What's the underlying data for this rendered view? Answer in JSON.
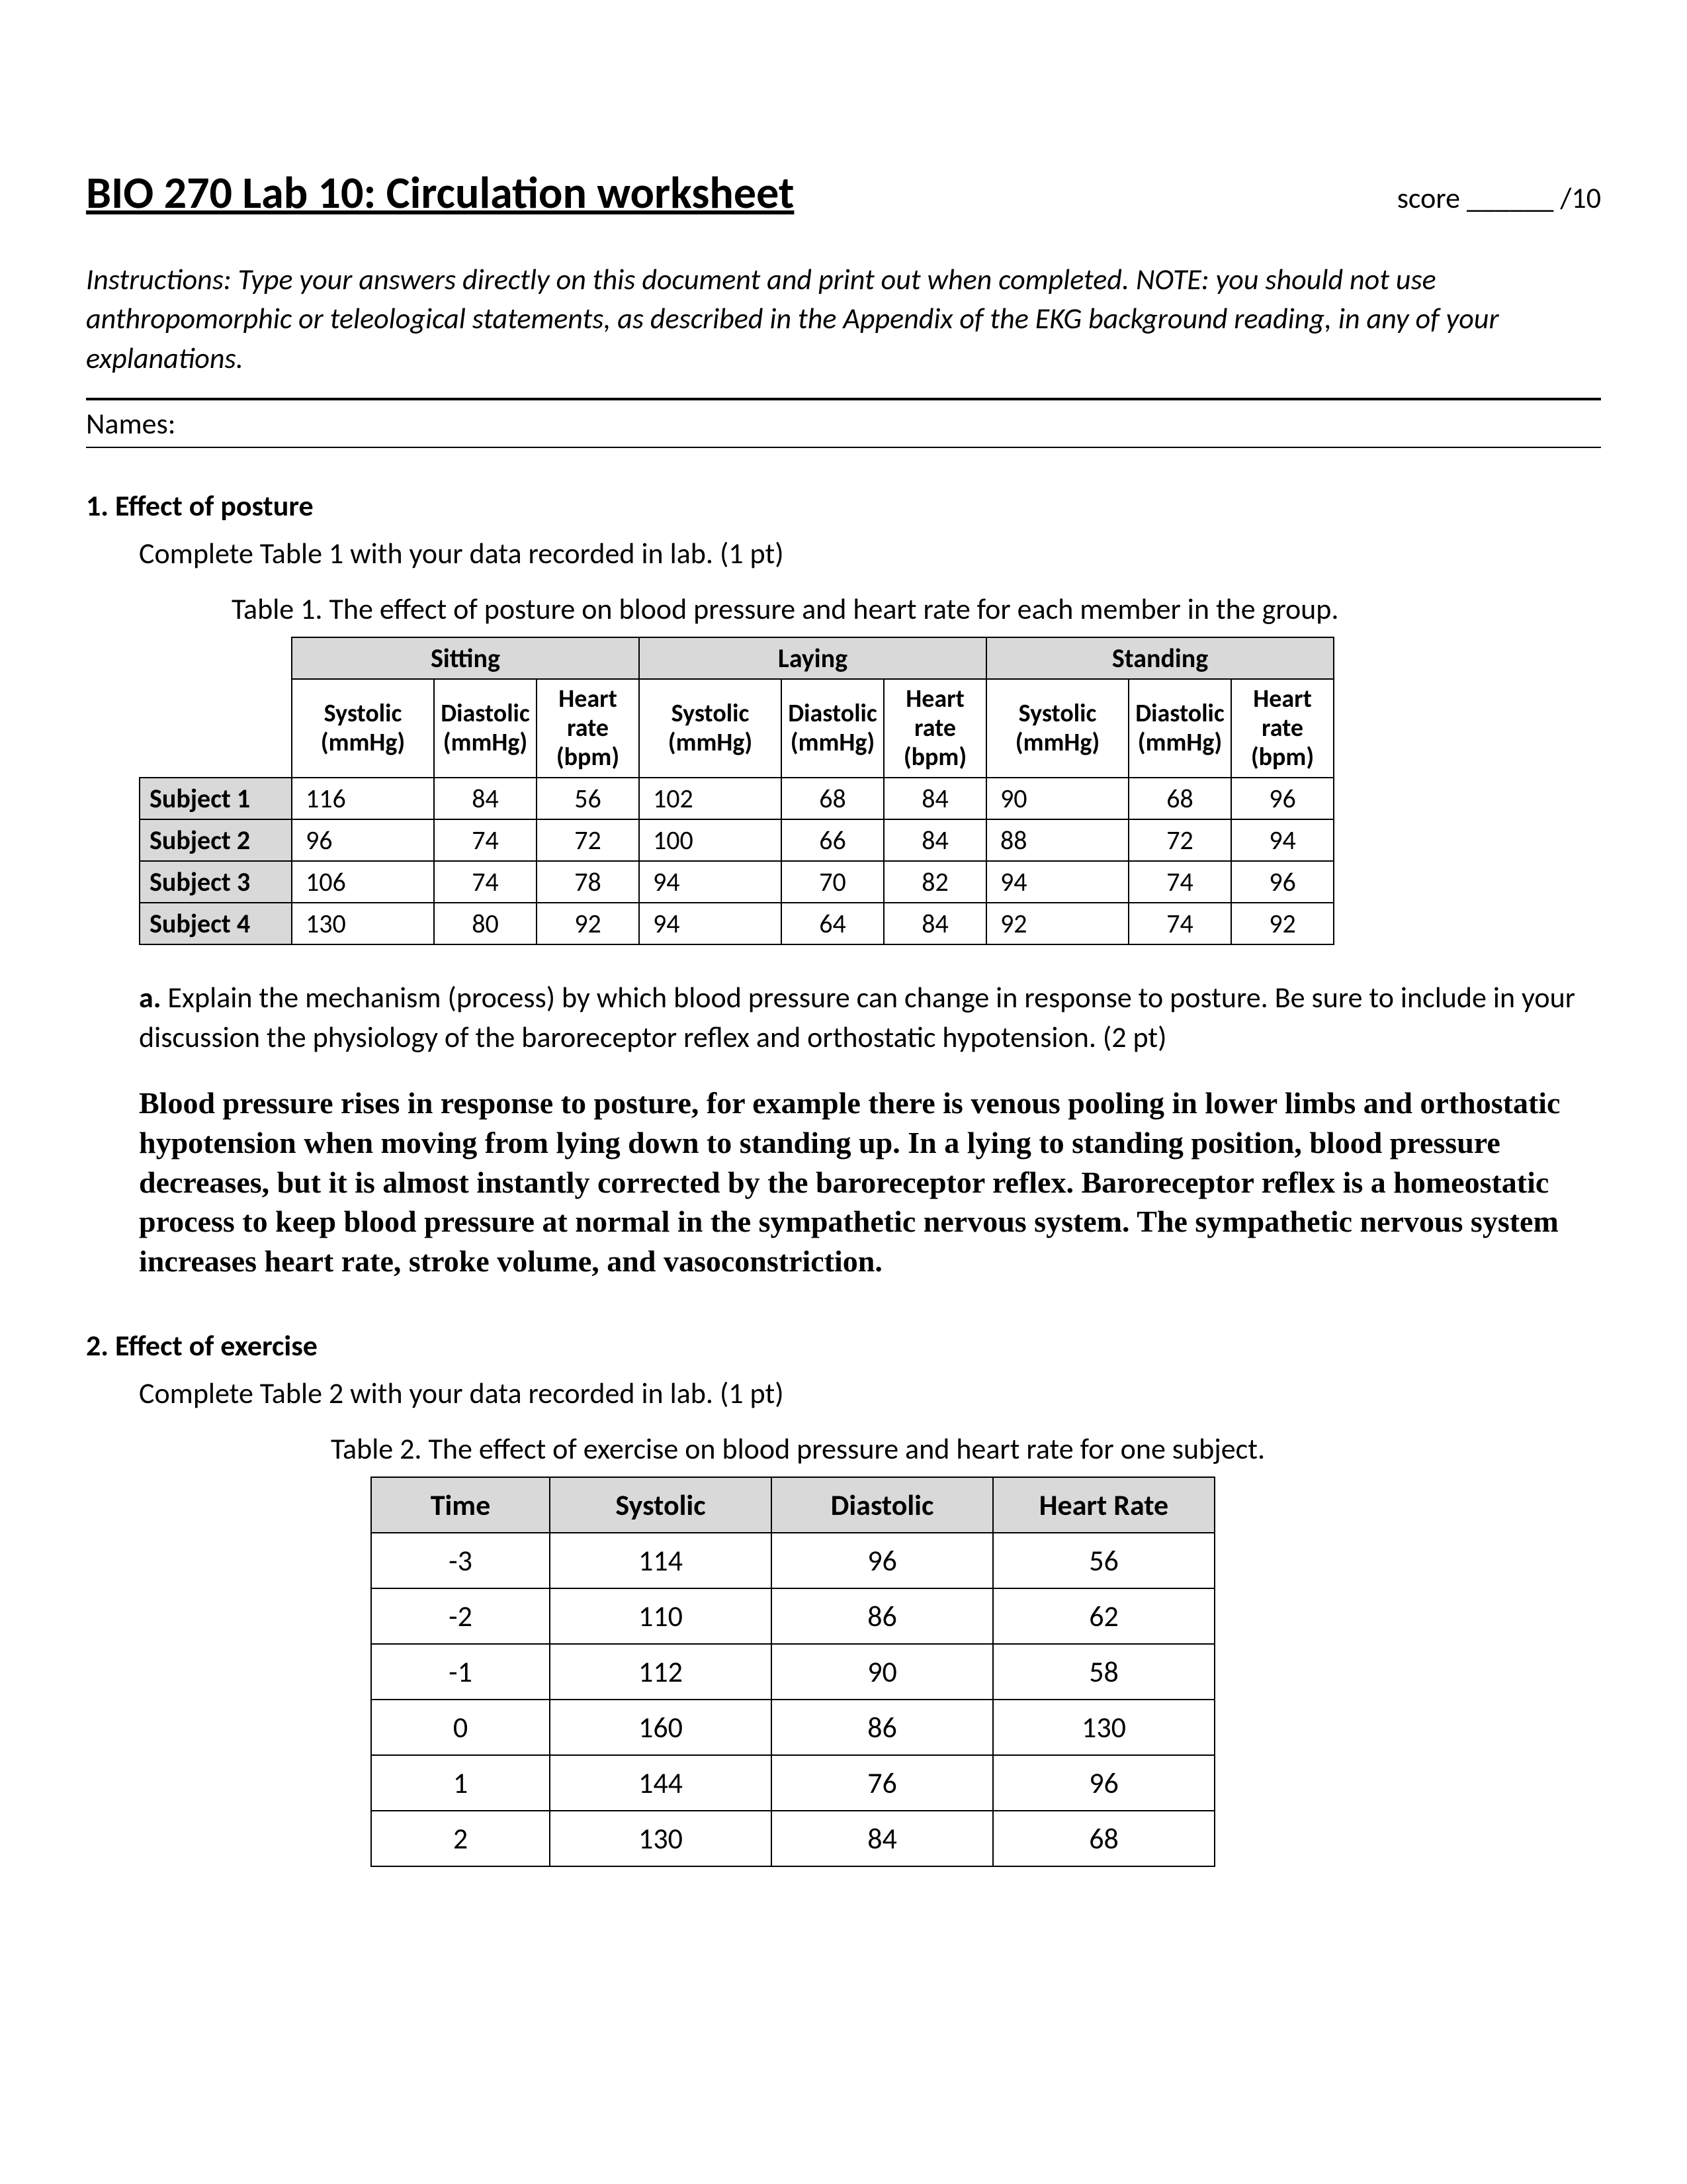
{
  "header": {
    "title": "BIO 270 Lab 10: Circulation worksheet",
    "score_label": "score ______ /10"
  },
  "instructions": "Instructions: Type your answers directly on this document and print out when completed.  NOTE: you should not use anthropomorphic or teleological statements, as described in the Appendix of the EKG background reading, in any of your explanations.",
  "names_label": "Names:",
  "q1": {
    "heading": "1. Effect of posture",
    "sub": "Complete Table 1 with your data recorded in lab.  (1 pt)",
    "caption": "Table 1.  The effect of posture on blood pressure and heart rate for each member in the group.",
    "group_headers": [
      "Sitting",
      "Laying",
      "Standing"
    ],
    "sub_headers": [
      "Systolic (mmHg)",
      "Diastolic (mmHg)",
      "Heart rate (bpm)"
    ],
    "rows": [
      {
        "label": "Subject 1",
        "vals": [
          "116",
          "84",
          "56",
          "102",
          "68",
          "84",
          "90",
          "68",
          "96"
        ]
      },
      {
        "label": "Subject 2",
        "vals": [
          "96",
          "74",
          "72",
          "100",
          "66",
          "84",
          "88",
          "72",
          "94"
        ]
      },
      {
        "label": "Subject 3",
        "vals": [
          "106",
          "74",
          "78",
          "94",
          "70",
          "82",
          "94",
          "74",
          "96"
        ]
      },
      {
        "label": "Subject 4",
        "vals": [
          "130",
          "80",
          "92",
          "94",
          "64",
          "84",
          "92",
          "74",
          "92"
        ]
      }
    ],
    "part_a": "a.",
    "part_a_text": " Explain the mechanism (process) by which blood pressure can change in response to posture.  Be sure to include in your discussion the physiology of the baroreceptor reflex and orthostatic hypotension.  (2 pt)",
    "answer": "Blood pressure rises in response to posture, for example there is venous pooling in lower limbs and orthostatic hypotension when moving from lying down to standing up.  In a lying to standing position, blood pressure decreases, but it is almost instantly corrected by the baroreceptor reflex. Baroreceptor reflex is a homeostatic process to keep blood pressure at normal in the sympathetic nervous system. The sympathetic nervous system increases heart rate, stroke volume, and vasoconstriction."
  },
  "q2": {
    "heading": "2. Effect of exercise",
    "sub": "Complete Table 2 with your data recorded in lab.  (1 pt)",
    "caption": "Table 2.  The effect of exercise on blood pressure and heart rate for one subject.",
    "headers": [
      "Time",
      "Systolic",
      "Diastolic",
      "Heart Rate"
    ],
    "rows": [
      [
        "-3",
        "114",
        "96",
        "56"
      ],
      [
        "-2",
        "110",
        "86",
        "62"
      ],
      [
        "-1",
        "112",
        "90",
        "58"
      ],
      [
        "0",
        "160",
        "86",
        "130"
      ],
      [
        "1",
        "144",
        "76",
        "96"
      ],
      [
        "2",
        "130",
        "84",
        "68"
      ]
    ]
  }
}
